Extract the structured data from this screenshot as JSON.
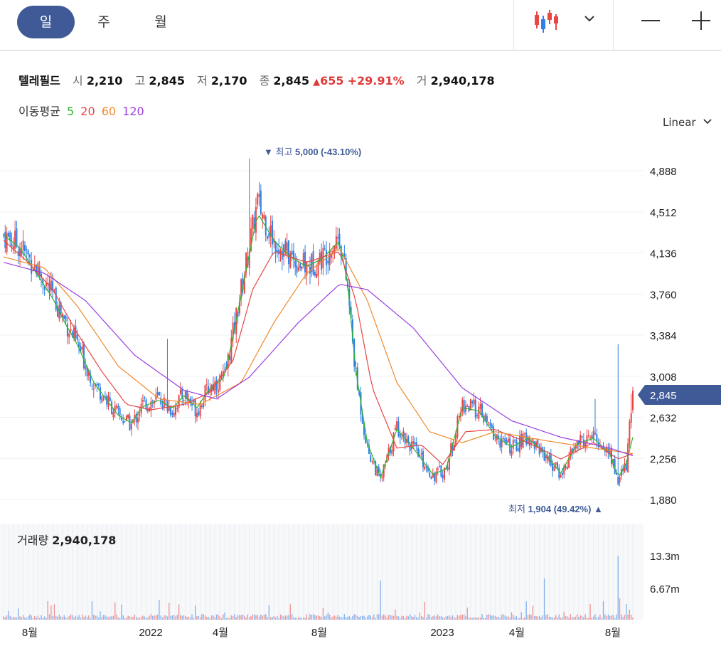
{
  "tabs": [
    {
      "label": "일",
      "active": true
    },
    {
      "label": "주",
      "active": false
    },
    {
      "label": "월",
      "active": false
    }
  ],
  "toolbar": {
    "chart_type_icon": "candlestick-icon",
    "dropdown_icon": "chevron-down-icon",
    "zoom_out_icon": "minus-icon",
    "zoom_in_icon": "plus-icon"
  },
  "quote": {
    "name": "텔레필드",
    "open_label": "시",
    "open": "2,210",
    "high_label": "고",
    "high": "2,845",
    "low_label": "저",
    "low": "2,170",
    "close_label": "종",
    "close": "2,845",
    "change_arrow": "▲",
    "change": "655",
    "change_pct": "+29.91%",
    "volume_label": "거",
    "volume": "2,940,178"
  },
  "moving_avg": {
    "label": "이동평균",
    "periods": [
      {
        "value": "5",
        "color": "#2db52d"
      },
      {
        "value": "20",
        "color": "#e84545"
      },
      {
        "value": "60",
        "color": "#f08a2b"
      },
      {
        "value": "120",
        "color": "#9b3fe0"
      }
    ]
  },
  "scale_mode": "Linear",
  "annotations": {
    "high": {
      "prefix": "▼ 최고",
      "value": "5,000 (-43.10%)"
    },
    "low": {
      "prefix": "최저",
      "value": "1,904 (49.42%) ▲"
    },
    "current_price": "2,845"
  },
  "volume_panel": {
    "label": "거래량",
    "value": "2,940,178"
  },
  "colors": {
    "up": "#e84545",
    "down": "#2f7fe6",
    "accent": "#3f5a96"
  },
  "chart_data": {
    "type": "candlestick",
    "price_axis": {
      "ticks": [
        "4,888",
        "4,512",
        "4,136",
        "3,760",
        "3,384",
        "3,008",
        "2,632",
        "2,256",
        "1,880"
      ],
      "range": [
        1880,
        4888
      ]
    },
    "volume_axis": {
      "ticks": [
        "13.3m",
        "6.67m"
      ]
    },
    "x_axis": {
      "ticks": [
        "8월",
        "2022",
        "4월",
        "8월",
        "2023",
        "4월",
        "8월"
      ]
    },
    "price_path": [
      [
        0,
        4300
      ],
      [
        10,
        4200
      ],
      [
        20,
        4000
      ],
      [
        30,
        3750
      ],
      [
        38,
        3500
      ],
      [
        45,
        3300
      ],
      [
        55,
        2950
      ],
      [
        70,
        2650
      ],
      [
        78,
        2560
      ],
      [
        85,
        2750
      ],
      [
        95,
        2800
      ],
      [
        103,
        2700
      ],
      [
        110,
        2850
      ],
      [
        118,
        2700
      ],
      [
        125,
        2900
      ],
      [
        135,
        3000
      ],
      [
        145,
        3800
      ],
      [
        155,
        4600
      ],
      [
        165,
        4250
      ],
      [
        175,
        4100
      ],
      [
        185,
        4000
      ],
      [
        195,
        4100
      ],
      [
        205,
        4300
      ],
      [
        210,
        3800
      ],
      [
        215,
        3000
      ],
      [
        222,
        2350
      ],
      [
        230,
        2050
      ],
      [
        240,
        2550
      ],
      [
        250,
        2350
      ],
      [
        262,
        2100
      ],
      [
        270,
        2150
      ],
      [
        280,
        2750
      ],
      [
        290,
        2700
      ],
      [
        300,
        2450
      ],
      [
        310,
        2350
      ],
      [
        320,
        2450
      ],
      [
        330,
        2300
      ],
      [
        340,
        2100
      ],
      [
        350,
        2400
      ],
      [
        360,
        2450
      ],
      [
        370,
        2300
      ],
      [
        375,
        2050
      ],
      [
        380,
        2200
      ],
      [
        384,
        2845
      ]
    ],
    "ma5": [
      [
        0,
        4300
      ],
      [
        10,
        4180
      ],
      [
        20,
        3950
      ],
      [
        30,
        3720
      ],
      [
        38,
        3480
      ],
      [
        45,
        3300
      ],
      [
        55,
        2950
      ],
      [
        70,
        2650
      ],
      [
        78,
        2580
      ],
      [
        85,
        2730
      ],
      [
        95,
        2790
      ],
      [
        103,
        2710
      ],
      [
        110,
        2830
      ],
      [
        118,
        2720
      ],
      [
        125,
        2880
      ],
      [
        135,
        3000
      ],
      [
        145,
        3750
      ],
      [
        155,
        4500
      ],
      [
        165,
        4250
      ],
      [
        175,
        4100
      ],
      [
        185,
        4010
      ],
      [
        195,
        4090
      ],
      [
        205,
        4250
      ],
      [
        210,
        3850
      ],
      [
        215,
        3050
      ],
      [
        222,
        2400
      ],
      [
        230,
        2080
      ],
      [
        240,
        2520
      ],
      [
        250,
        2350
      ],
      [
        262,
        2110
      ],
      [
        270,
        2160
      ],
      [
        280,
        2720
      ],
      [
        290,
        2690
      ],
      [
        300,
        2460
      ],
      [
        310,
        2360
      ],
      [
        320,
        2440
      ],
      [
        330,
        2310
      ],
      [
        340,
        2120
      ],
      [
        350,
        2390
      ],
      [
        360,
        2440
      ],
      [
        370,
        2300
      ],
      [
        375,
        2080
      ],
      [
        380,
        2210
      ],
      [
        384,
        2450
      ]
    ],
    "ma20": [
      [
        0,
        4250
      ],
      [
        15,
        4050
      ],
      [
        30,
        3800
      ],
      [
        45,
        3400
      ],
      [
        60,
        3050
      ],
      [
        75,
        2750
      ],
      [
        90,
        2700
      ],
      [
        110,
        2750
      ],
      [
        125,
        2850
      ],
      [
        140,
        3150
      ],
      [
        152,
        3800
      ],
      [
        165,
        4150
      ],
      [
        185,
        4050
      ],
      [
        205,
        4150
      ],
      [
        215,
        3700
      ],
      [
        225,
        2900
      ],
      [
        240,
        2350
      ],
      [
        255,
        2380
      ],
      [
        268,
        2200
      ],
      [
        282,
        2500
      ],
      [
        300,
        2520
      ],
      [
        320,
        2400
      ],
      [
        340,
        2250
      ],
      [
        360,
        2400
      ],
      [
        375,
        2250
      ],
      [
        384,
        2300
      ]
    ],
    "ma60": [
      [
        0,
        4100
      ],
      [
        25,
        4000
      ],
      [
        45,
        3650
      ],
      [
        70,
        3100
      ],
      [
        95,
        2800
      ],
      [
        120,
        2750
      ],
      [
        145,
        2950
      ],
      [
        165,
        3500
      ],
      [
        185,
        3950
      ],
      [
        205,
        4180
      ],
      [
        222,
        3700
      ],
      [
        240,
        2950
      ],
      [
        260,
        2500
      ],
      [
        280,
        2400
      ],
      [
        300,
        2500
      ],
      [
        330,
        2420
      ],
      [
        360,
        2350
      ],
      [
        384,
        2300
      ]
    ],
    "ma120": [
      [
        0,
        4050
      ],
      [
        25,
        3950
      ],
      [
        50,
        3700
      ],
      [
        80,
        3200
      ],
      [
        110,
        2880
      ],
      [
        130,
        2800
      ],
      [
        150,
        3000
      ],
      [
        180,
        3500
      ],
      [
        205,
        3850
      ],
      [
        222,
        3800
      ],
      [
        250,
        3450
      ],
      [
        280,
        2900
      ],
      [
        310,
        2600
      ],
      [
        340,
        2450
      ],
      [
        370,
        2350
      ],
      [
        384,
        2280
      ]
    ],
    "bars": 385,
    "spikes": [
      {
        "i": 100,
        "value": 3350
      },
      {
        "i": 150,
        "value": 5000
      },
      {
        "i": 375,
        "value": 3300
      },
      {
        "i": 361,
        "value": 2800
      },
      {
        "i": 383,
        "value": 2845
      }
    ]
  }
}
